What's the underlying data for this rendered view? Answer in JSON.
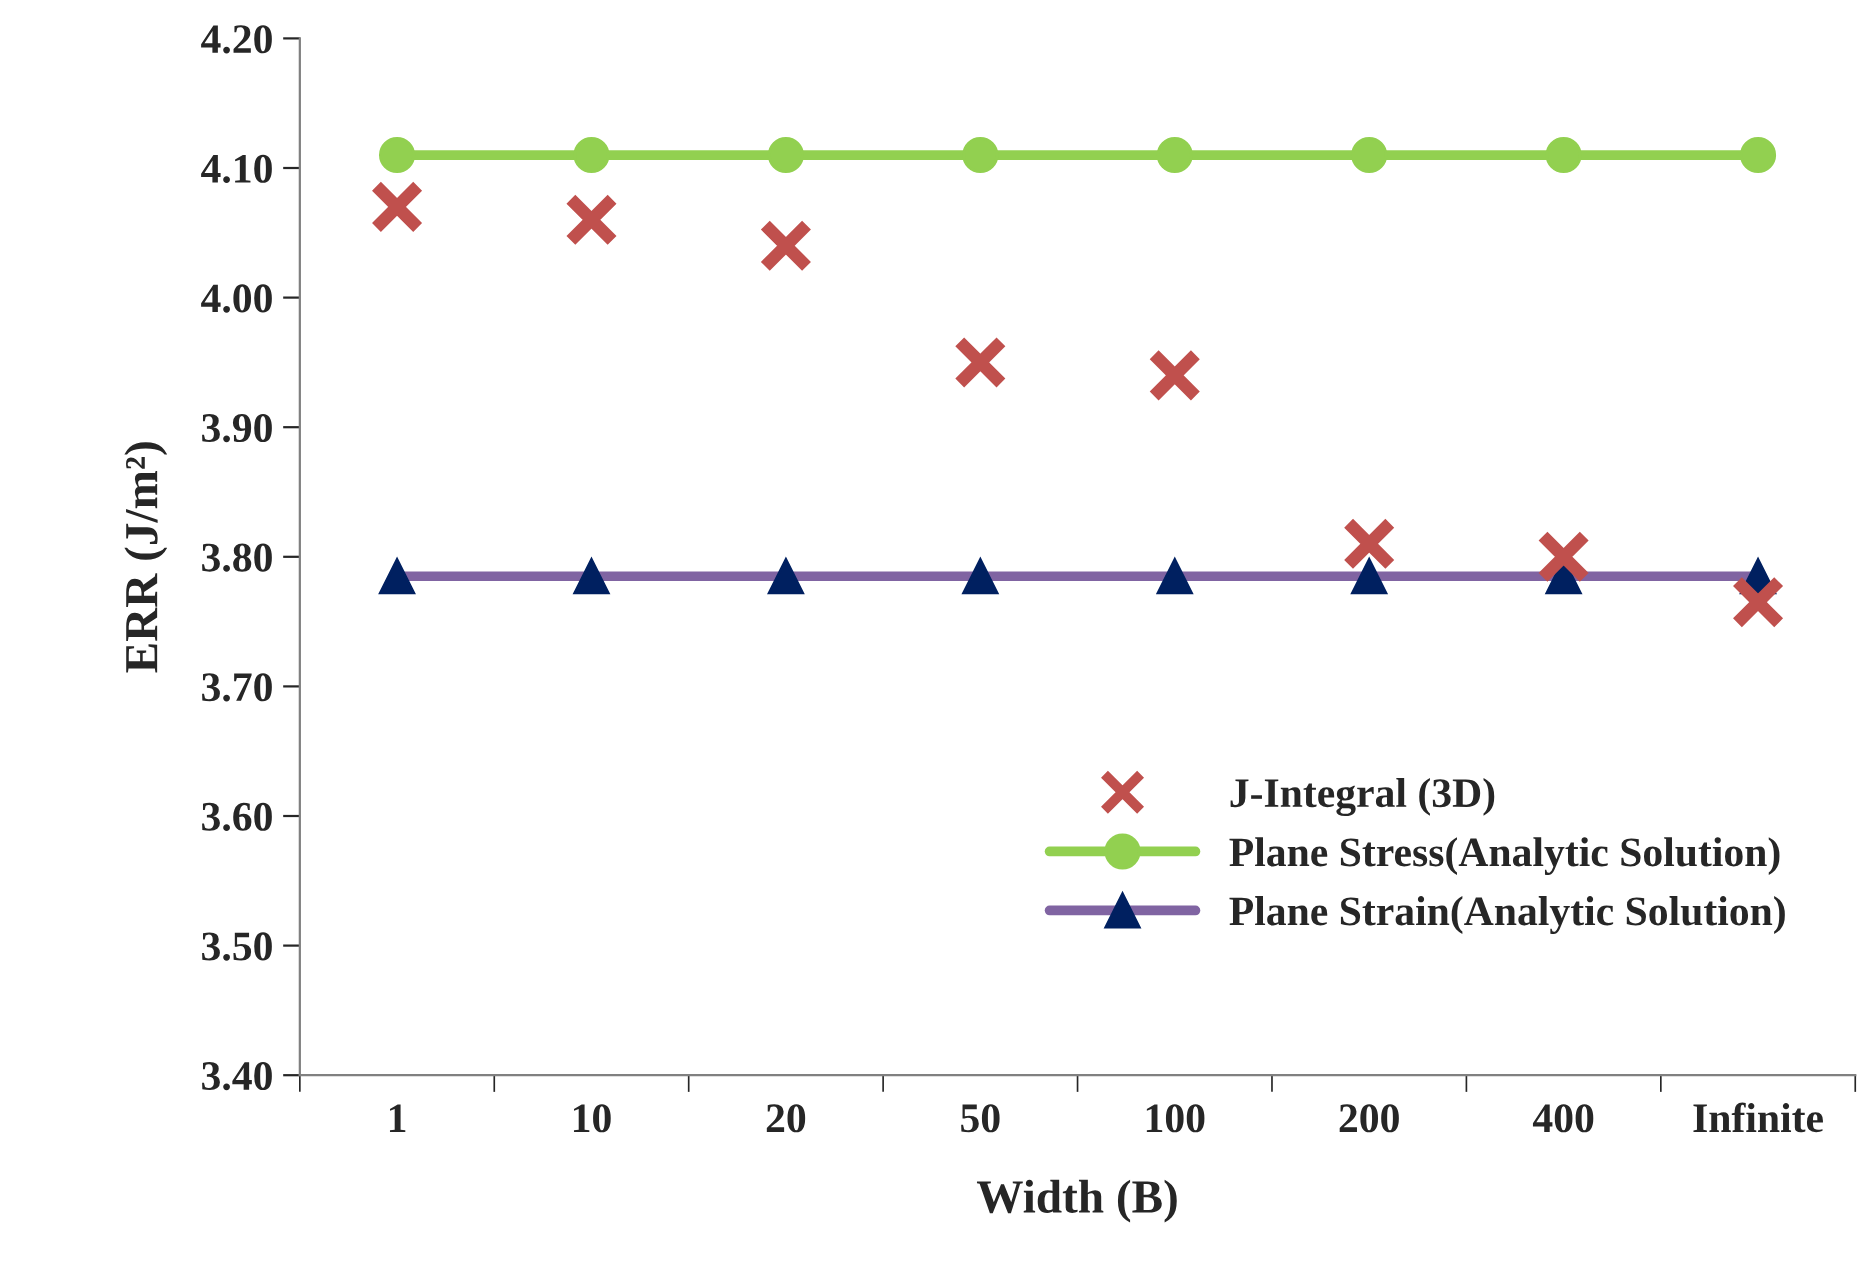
{
  "chart_data": {
    "type": "line",
    "xlabel": "Width (B)",
    "ylabel": "ERR (J/m²)",
    "categories": [
      "1",
      "10",
      "20",
      "50",
      "100",
      "200",
      "400",
      "Infinite"
    ],
    "series": [
      {
        "name": "J-Integral (3D)",
        "type": "scatter",
        "marker": "cross",
        "color": "#c0504d",
        "values": [
          4.07,
          4.06,
          4.04,
          3.95,
          3.94,
          3.81,
          3.8,
          3.765
        ]
      },
      {
        "name": "Plane Stress(Analytic Solution)",
        "marker": "circle",
        "color": "#92d050",
        "values": [
          4.11,
          4.11,
          4.11,
          4.11,
          4.11,
          4.11,
          4.11,
          4.11
        ]
      },
      {
        "name": "Plane Strain(Analytic Solution)",
        "marker": "triangle",
        "color": "#8064a2",
        "values": [
          3.785,
          3.785,
          3.785,
          3.785,
          3.785,
          3.785,
          3.785,
          3.785
        ]
      }
    ],
    "ylim": [
      3.4,
      4.2
    ],
    "yticks": [
      {
        "value": 3.4,
        "label": "3.40"
      },
      {
        "value": 3.5,
        "label": "3.50"
      },
      {
        "value": 3.6,
        "label": "3.60"
      },
      {
        "value": 3.7,
        "label": "3.70"
      },
      {
        "value": 3.8,
        "label": "3.80"
      },
      {
        "value": 3.9,
        "label": "3.90"
      },
      {
        "value": 4.0,
        "label": "4.00"
      },
      {
        "value": 4.1,
        "label": "4.10"
      },
      {
        "value": 4.2,
        "label": "4.20"
      }
    ],
    "grid": false,
    "legend": "bottom right"
  }
}
